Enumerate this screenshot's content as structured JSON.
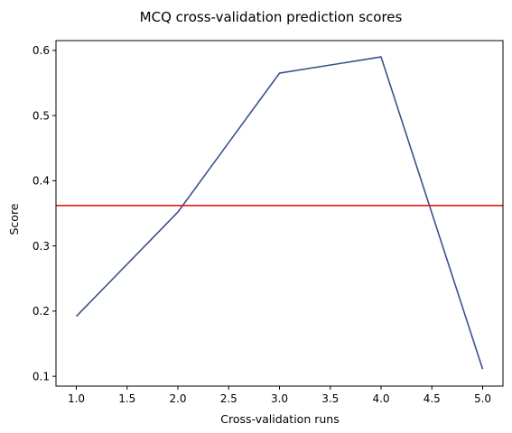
{
  "chart_data": {
    "type": "line",
    "title": "MCQ cross-validation prediction scores",
    "xlabel": "Cross-validation runs",
    "ylabel": "Score",
    "xlim": [
      0.8,
      5.2
    ],
    "ylim": [
      0.085,
      0.615
    ],
    "xticks": [
      1.0,
      1.5,
      2.0,
      2.5,
      3.0,
      3.5,
      4.0,
      4.5,
      5.0
    ],
    "xtick_labels": [
      "1.0",
      "1.5",
      "2.0",
      "2.5",
      "3.0",
      "3.5",
      "4.0",
      "4.5",
      "5.0"
    ],
    "yticks": [
      0.1,
      0.2,
      0.3,
      0.4,
      0.5,
      0.6
    ],
    "ytick_labels": [
      "0.1",
      "0.2",
      "0.3",
      "0.4",
      "0.5",
      "0.6"
    ],
    "grid": false,
    "series": [
      {
        "x": [
          1,
          2,
          3,
          4,
          5
        ],
        "y": [
          0.192,
          0.352,
          0.565,
          0.59,
          0.111
        ],
        "color": "#3a5289"
      }
    ],
    "reference_line": {
      "orientation": "horizontal",
      "y": 0.362,
      "color": "#e31a1c"
    }
  }
}
